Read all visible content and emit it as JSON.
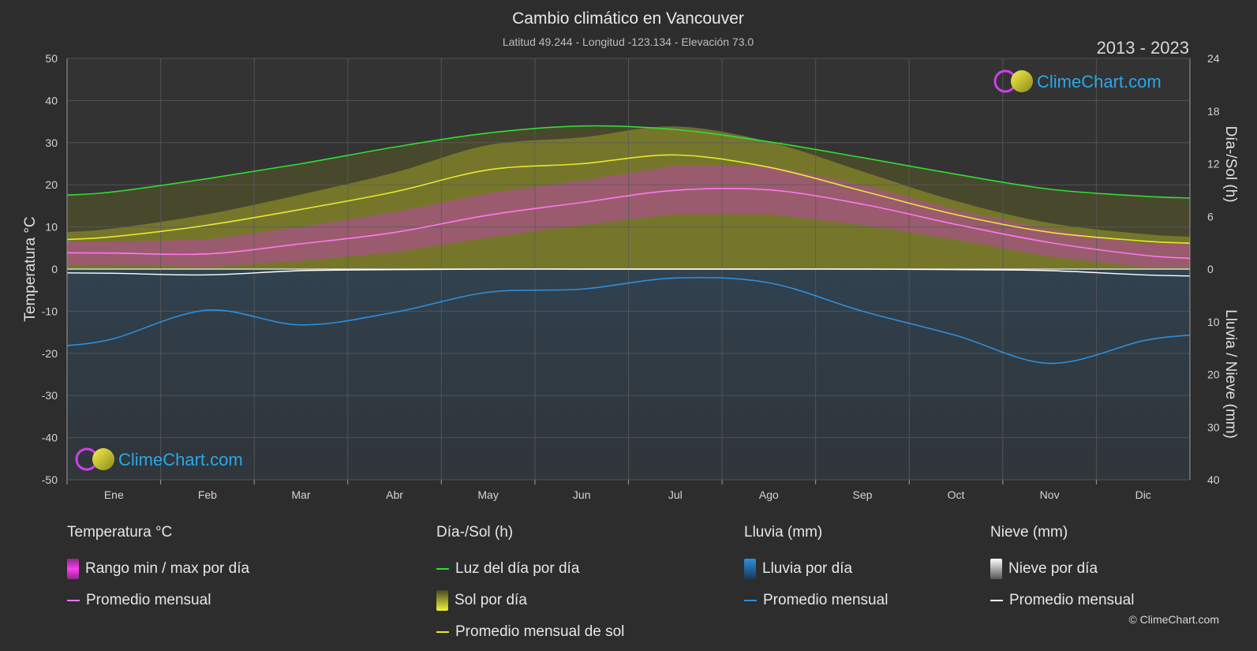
{
  "header": {
    "title": "Cambio climático en Vancouver",
    "subtitle": "Latitud 49.244 - Longitud -123.134 - Elevación 73.0",
    "years": "2013 - 2023"
  },
  "brand": {
    "name": "ClimeChart.com",
    "copyright": "© ClimeChart.com"
  },
  "axes": {
    "left_label": "Temperatura °C",
    "right_top_label": "Día-/Sol (h)",
    "right_bottom_label": "Lluvia / Nieve (mm)",
    "left_ticks": [
      "50",
      "40",
      "30",
      "20",
      "10",
      "0",
      "-10",
      "-20",
      "-30",
      "-40",
      "-50"
    ],
    "right_top_ticks": [
      "24",
      "18",
      "12",
      "6",
      "0"
    ],
    "right_bottom_ticks": [
      "10",
      "20",
      "30",
      "40"
    ]
  },
  "legend": {
    "temp": {
      "title": "Temperatura °C",
      "range": "Rango min / max por día",
      "avg": "Promedio mensual"
    },
    "sun": {
      "title": "Día-/Sol (h)",
      "daylight": "Luz del día por día",
      "sun": "Sol por día",
      "avg": "Promedio mensual de sol"
    },
    "rain": {
      "title": "Lluvia (mm)",
      "daily": "Lluvia por día",
      "avg": "Promedio mensual"
    },
    "snow": {
      "title": "Nieve (mm)",
      "daily": "Nieve por día",
      "avg": "Promedio mensual"
    }
  },
  "colors": {
    "background": "#2d2d2d",
    "grid": "#5a5a5a",
    "daylight": "#33dd33",
    "sunshine_avg": "#e8e830",
    "sunshine_fill": "#9c9c2a",
    "temp_avg": "#ff77ee",
    "temp_range": "#c83cc0",
    "rain_avg": "#2d8fdd",
    "rain_bars": "#1e5f92",
    "snow_avg": "#ffffff",
    "brand": "#2aa8e8"
  },
  "chart_data": {
    "type": "line",
    "categories": [
      "Ene",
      "Feb",
      "Mar",
      "Abr",
      "May",
      "Jun",
      "Jul",
      "Ago",
      "Sep",
      "Oct",
      "Nov",
      "Dic"
    ],
    "temperature_ylim": [
      -50,
      50
    ],
    "sun_ylim_hours": [
      0,
      24
    ],
    "precip_ylim_mm": [
      0,
      40
    ],
    "series": [
      {
        "name": "Luz del día por día",
        "unit": "h",
        "values": [
          8.8,
          10.3,
          12.0,
          13.9,
          15.5,
          16.3,
          15.9,
          14.5,
          12.7,
          10.8,
          9.1,
          8.3
        ]
      },
      {
        "name": "Promedio mensual de sol",
        "unit": "h",
        "values": [
          3.7,
          5.0,
          6.8,
          8.8,
          11.3,
          12.0,
          13.0,
          11.6,
          8.9,
          6.2,
          4.2,
          3.2
        ]
      },
      {
        "name": "Temperatura - Promedio mensual",
        "unit": "°C",
        "values": [
          3.8,
          3.6,
          6.0,
          8.7,
          12.8,
          15.8,
          18.7,
          18.8,
          15.4,
          10.6,
          6.3,
          3.3
        ]
      },
      {
        "name": "Lluvia - Promedio mensual",
        "unit": "mm",
        "values": [
          13.2,
          7.8,
          10.6,
          8.2,
          4.4,
          3.8,
          1.7,
          2.6,
          8.0,
          12.6,
          17.9,
          13.6
        ]
      },
      {
        "name": "Nieve - Promedio mensual",
        "unit": "mm",
        "values": [
          0.8,
          1.1,
          0.3,
          0.1,
          0.0,
          0.0,
          0.0,
          0.0,
          0.0,
          0.1,
          0.3,
          1.1
        ]
      }
    ],
    "temperature_range": {
      "min": [
        1.0,
        0.5,
        2.0,
        4.0,
        7.5,
        10.5,
        13.0,
        13.0,
        10.5,
        7.0,
        3.0,
        0.5
      ],
      "max": [
        6.5,
        7.0,
        10.0,
        13.5,
        18.0,
        21.0,
        24.5,
        24.5,
        20.0,
        14.0,
        9.5,
        6.0
      ]
    }
  }
}
